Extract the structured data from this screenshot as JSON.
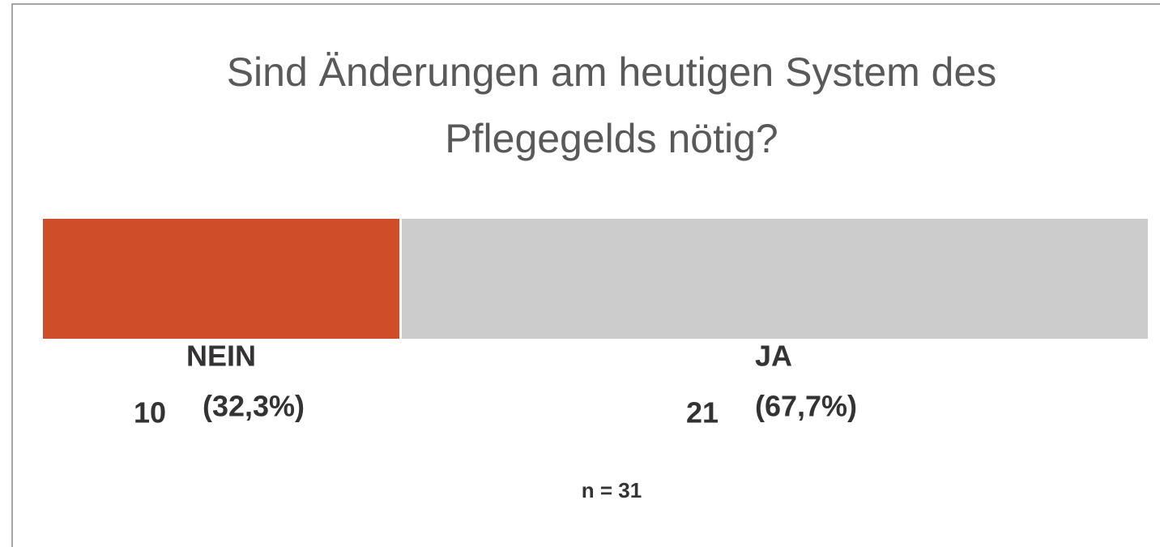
{
  "chart_data": {
    "type": "bar",
    "orientation": "horizontal",
    "stacked": true,
    "title": "Sind Änderungen am heutigen System des Pflegegelds nötig?",
    "series": [
      {
        "name": "NEIN",
        "color": "#cf4d28",
        "values": [
          10
        ],
        "shares": [
          32.3
        ],
        "share_labels": [
          "(32,3%)"
        ]
      },
      {
        "name": "JA",
        "color": "#cbcccb",
        "values": [
          21
        ],
        "shares": [
          67.7
        ],
        "share_labels": [
          "(67,7%)"
        ]
      }
    ],
    "n": 31,
    "n_label": "n = 31"
  }
}
